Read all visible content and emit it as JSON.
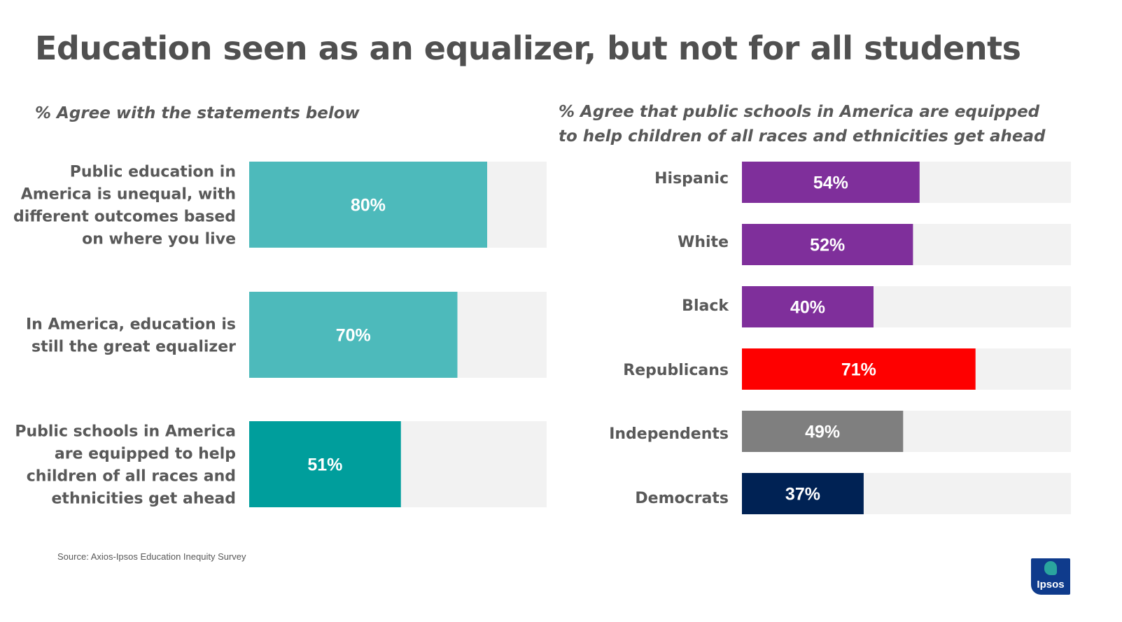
{
  "title": "Education seen as an equalizer, but not for all students",
  "source": "Source: Axios-Ipsos Education Inequity Survey",
  "logo": {
    "text": "Ipsos"
  },
  "chart_data": [
    {
      "type": "bar",
      "orientation": "horizontal",
      "title": "% Agree with the statements below",
      "categories": [
        "Public education in America is unequal, with different outcomes based on where you live",
        "In America, education is still the great equalizer",
        "Public schools in America are equipped to help children of all races and ethnicities get ahead"
      ],
      "values": [
        80,
        70,
        51
      ],
      "data_labels": [
        "80%",
        "70%",
        "51%"
      ],
      "colors": [
        "#4dbabb",
        "#4dbabb",
        "#009e9c"
      ],
      "xlim": [
        0,
        100
      ]
    },
    {
      "type": "bar",
      "orientation": "horizontal",
      "title": "% Agree that public schools in America are equipped to help children of all races and ethnicities get ahead",
      "categories": [
        "Hispanic",
        "White",
        "Black",
        "Republicans",
        "Independents",
        "Democrats"
      ],
      "values": [
        54,
        52,
        40,
        71,
        49,
        37
      ],
      "data_labels": [
        "54%",
        "52%",
        "40%",
        "71%",
        "49%",
        "37%"
      ],
      "colors": [
        "#7f2f9b",
        "#7f2f9b",
        "#7f2f9b",
        "#fe0000",
        "#7f7f7f",
        "#002254"
      ],
      "xlim": [
        0,
        100
      ]
    }
  ]
}
